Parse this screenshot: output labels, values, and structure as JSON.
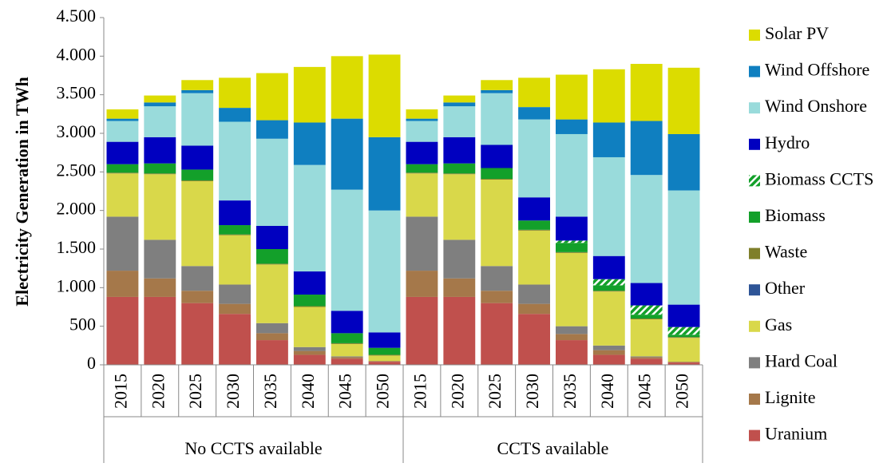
{
  "chart_data": {
    "type": "stacked-bar",
    "y_label": "Electricity Generation in TWh",
    "categories": [
      "2015",
      "2020",
      "2025",
      "2030",
      "2035",
      "2040",
      "2045",
      "2050",
      "2015",
      "2020",
      "2025",
      "2030",
      "2035",
      "2040",
      "2045",
      "2050"
    ],
    "groups": [
      {
        "name": "No CCTS available",
        "span": 8
      },
      {
        "name": "CCTS available",
        "span": 8
      }
    ],
    "ylim": [
      0,
      4500
    ],
    "yticks": [
      0,
      500,
      {
        "value": 1000,
        "label": "1.000"
      },
      {
        "value": 1500,
        "label": "1.500"
      },
      {
        "value": 2000,
        "label": "2.000"
      },
      {
        "value": 2500,
        "label": "2.500"
      },
      {
        "value": 3000,
        "label": "3.000"
      },
      {
        "value": 3500,
        "label": "3.500"
      },
      {
        "value": 4000,
        "label": "4.000"
      },
      {
        "value": 4500,
        "label": "4.500"
      }
    ],
    "grid": false,
    "legend": "right",
    "series": [
      {
        "name": "Uranium",
        "color": "#c0504d",
        "values": [
          880,
          880,
          800,
          660,
          320,
          130,
          80,
          40,
          880,
          880,
          800,
          660,
          320,
          130,
          80,
          30
        ]
      },
      {
        "name": "Lignite",
        "color": "#a5784a",
        "values": [
          340,
          240,
          160,
          130,
          90,
          50,
          20,
          10,
          340,
          240,
          160,
          130,
          80,
          60,
          20,
          10
        ]
      },
      {
        "name": "Hard Coal",
        "color": "#7f7f7f",
        "values": [
          700,
          500,
          320,
          250,
          130,
          50,
          10,
          0,
          700,
          500,
          320,
          250,
          100,
          60,
          10,
          0
        ]
      },
      {
        "name": "Gas",
        "color": "#d9d84a",
        "values": [
          560,
          850,
          1100,
          640,
          760,
          520,
          160,
          70,
          560,
          850,
          1120,
          700,
          950,
          700,
          480,
          310
        ]
      },
      {
        "name": "Other",
        "color": "#2e5597",
        "values": [
          0,
          0,
          0,
          0,
          0,
          0,
          0,
          0,
          0,
          0,
          0,
          0,
          0,
          0,
          0,
          0
        ]
      },
      {
        "name": "Waste",
        "color": "#7f7f2a",
        "values": [
          10,
          10,
          10,
          10,
          10,
          10,
          10,
          10,
          10,
          10,
          10,
          10,
          10,
          10,
          10,
          10
        ]
      },
      {
        "name": "Biomass",
        "color": "#13a02a",
        "values": [
          110,
          130,
          140,
          120,
          190,
          150,
          130,
          90,
          110,
          130,
          140,
          120,
          120,
          70,
          50,
          30
        ]
      },
      {
        "name": "Biomass CCTS",
        "color": "#13a02a",
        "pattern": "hatch",
        "values": [
          0,
          0,
          0,
          0,
          0,
          0,
          0,
          0,
          0,
          0,
          0,
          0,
          30,
          80,
          120,
          100
        ]
      },
      {
        "name": "Hydro",
        "color": "#0000c0",
        "values": [
          290,
          340,
          310,
          320,
          300,
          300,
          290,
          200,
          290,
          340,
          300,
          300,
          310,
          300,
          290,
          290
        ]
      },
      {
        "name": "Wind Onshore",
        "color": "#99dbdb",
        "values": [
          270,
          400,
          680,
          1020,
          1130,
          1380,
          1570,
          1580,
          270,
          400,
          670,
          1010,
          1070,
          1280,
          1400,
          1480
        ]
      },
      {
        "name": "Wind Offshore",
        "color": "#0f7fc0",
        "values": [
          30,
          50,
          40,
          180,
          240,
          550,
          920,
          950,
          30,
          50,
          40,
          160,
          190,
          450,
          700,
          730
        ]
      },
      {
        "name": "Solar PV",
        "color": "#dcdc00",
        "values": [
          120,
          90,
          130,
          390,
          610,
          720,
          810,
          1070,
          120,
          90,
          130,
          380,
          580,
          690,
          740,
          860
        ]
      }
    ]
  }
}
